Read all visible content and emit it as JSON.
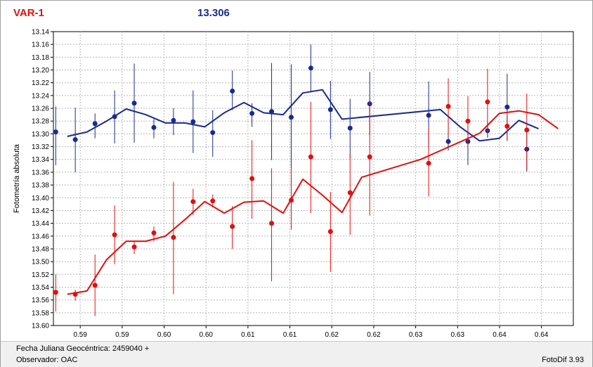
{
  "header": {
    "title": "VAR-1",
    "value": "13.306"
  },
  "footer": {
    "date_label": "Fecha Juliana Geocéntrica: 2459040 +",
    "observer_label": "Observador: OAC",
    "software_label": "FotoDif 3.93"
  },
  "chart_data": {
    "type": "scatter",
    "ylabel": "Fotometría absoluta",
    "xlabel": "",
    "y_inverted": true,
    "xlim": [
      0.5825,
      0.6445
    ],
    "ylim": [
      13.14,
      13.6
    ],
    "grid": true,
    "yticks": [
      "13.14",
      "13.16",
      "13.18",
      "13.20",
      "13.22",
      "13.24",
      "13.26",
      "13.28",
      "13.30",
      "13.32",
      "13.34",
      "13.36",
      "13.38",
      "13.40",
      "13.42",
      "13.44",
      "13.46",
      "13.48",
      "13.50",
      "13.52",
      "13.54",
      "13.56",
      "13.58",
      "13.60"
    ],
    "xticks": [
      {
        "x": 0.5857,
        "label": "0.59"
      },
      {
        "x": 0.5907,
        "label": "0.59"
      },
      {
        "x": 0.5957,
        "label": "0.60"
      },
      {
        "x": 0.6007,
        "label": "0.60"
      },
      {
        "x": 0.6057,
        "label": "0.61"
      },
      {
        "x": 0.6107,
        "label": "0.61"
      },
      {
        "x": 0.6157,
        "label": "0.62"
      },
      {
        "x": 0.6207,
        "label": "0.62"
      },
      {
        "x": 0.6257,
        "label": "0.63"
      },
      {
        "x": 0.6307,
        "label": "0.63"
      },
      {
        "x": 0.6357,
        "label": "0.64"
      },
      {
        "x": 0.6407,
        "label": "0.64"
      }
    ],
    "series": [
      {
        "color": "#1c2a8c",
        "points": [
          {
            "x": 0.58278,
            "y": 13.297,
            "lo": 13.257,
            "hi": 13.349
          },
          {
            "x": 0.58511,
            "y": 13.309,
            "lo": 13.259,
            "hi": 13.36
          },
          {
            "x": 0.58746,
            "y": 13.284,
            "lo": 13.268,
            "hi": 13.307
          },
          {
            "x": 0.5898,
            "y": 13.273,
            "lo": 13.232,
            "hi": 13.315
          },
          {
            "x": 0.59214,
            "y": 13.252,
            "lo": 13.19,
            "hi": 13.314
          },
          {
            "x": 0.59448,
            "y": 13.29,
            "lo": 13.277,
            "hi": 13.307
          },
          {
            "x": 0.59682,
            "y": 13.279,
            "lo": 13.26,
            "hi": 13.302
          },
          {
            "x": 0.59916,
            "y": 13.281,
            "lo": 13.232,
            "hi": 13.33
          },
          {
            "x": 0.6015,
            "y": 13.298,
            "lo": 13.263,
            "hi": 13.336
          },
          {
            "x": 0.60384,
            "y": 13.233,
            "lo": 13.201,
            "hi": 13.263
          },
          {
            "x": 0.60618,
            "y": 13.268,
            "lo": 13.252,
            "hi": 13.289
          },
          {
            "x": 0.60852,
            "y": 13.265,
            "lo": 13.189,
            "hi": 13.341
          },
          {
            "x": 0.61086,
            "y": 13.274,
            "lo": 13.191,
            "hi": 13.357
          },
          {
            "x": 0.6132,
            "y": 13.197,
            "lo": 13.16,
            "hi": 13.235
          },
          {
            "x": 0.61554,
            "y": 13.262,
            "lo": 13.217,
            "hi": 13.308
          },
          {
            "x": 0.61788,
            "y": 13.291,
            "lo": 13.245,
            "hi": 13.338
          },
          {
            "x": 0.62022,
            "y": 13.253,
            "lo": 13.203,
            "hi": 13.302
          },
          {
            "x": 0.62725,
            "y": 13.271,
            "lo": 13.218,
            "hi": 13.323
          },
          {
            "x": 0.62959,
            "y": 13.312,
            "lo": 13.283,
            "hi": 13.326
          },
          {
            "x": 0.63193,
            "y": 13.312,
            "lo": 13.28,
            "hi": 13.349
          },
          {
            "x": 0.63427,
            "y": 13.295,
            "lo": 13.281,
            "hi": 13.306
          },
          {
            "x": 0.63661,
            "y": 13.258,
            "lo": 13.206,
            "hi": 13.311
          },
          {
            "x": 0.63895,
            "y": 13.324,
            "lo": 13.289,
            "hi": 13.359
          }
        ],
        "line": [
          [
            0.58417,
            13.304
          ],
          [
            0.5865,
            13.297
          ],
          [
            0.58884,
            13.28
          ],
          [
            0.59118,
            13.261
          ],
          [
            0.59352,
            13.27
          ],
          [
            0.59586,
            13.283
          ],
          [
            0.5982,
            13.283
          ],
          [
            0.60054,
            13.289
          ],
          [
            0.60288,
            13.267
          ],
          [
            0.60522,
            13.251
          ],
          [
            0.60756,
            13.267
          ],
          [
            0.6099,
            13.27
          ],
          [
            0.61224,
            13.236
          ],
          [
            0.61458,
            13.231
          ],
          [
            0.61692,
            13.277
          ],
          [
            0.62865,
            13.262
          ],
          [
            0.63099,
            13.289
          ],
          [
            0.63333,
            13.311
          ],
          [
            0.63567,
            13.307
          ],
          [
            0.63801,
            13.279
          ],
          [
            0.64035,
            13.292
          ]
        ]
      },
      {
        "color": "#e01010",
        "points": [
          {
            "x": 0.58278,
            "y": 13.548,
            "lo": 13.52,
            "hi": 13.578
          },
          {
            "x": 0.58511,
            "y": 13.551,
            "lo": 13.544,
            "hi": 13.561
          },
          {
            "x": 0.58746,
            "y": 13.537,
            "lo": 13.489,
            "hi": 13.585
          },
          {
            "x": 0.5898,
            "y": 13.458,
            "lo": 13.412,
            "hi": 13.504
          },
          {
            "x": 0.59214,
            "y": 13.477,
            "lo": 13.467,
            "hi": 13.488
          },
          {
            "x": 0.59448,
            "y": 13.455,
            "lo": 13.445,
            "hi": 13.468
          },
          {
            "x": 0.59682,
            "y": 13.462,
            "lo": 13.375,
            "hi": 13.551
          },
          {
            "x": 0.59916,
            "y": 13.406,
            "lo": 13.386,
            "hi": 13.427
          },
          {
            "x": 0.6015,
            "y": 13.405,
            "lo": 13.395,
            "hi": 13.415
          },
          {
            "x": 0.60384,
            "y": 13.445,
            "lo": 13.413,
            "hi": 13.48
          },
          {
            "x": 0.60618,
            "y": 13.37,
            "lo": 13.31,
            "hi": 13.433
          },
          {
            "x": 0.60852,
            "y": 13.44,
            "lo": 13.354,
            "hi": 13.531
          },
          {
            "x": 0.61086,
            "y": 13.404,
            "lo": 13.353,
            "hi": 13.45
          },
          {
            "x": 0.6132,
            "y": 13.336,
            "lo": 13.25,
            "hi": 13.424
          },
          {
            "x": 0.61554,
            "y": 13.453,
            "lo": 13.391,
            "hi": 13.516
          },
          {
            "x": 0.61788,
            "y": 13.392,
            "lo": 13.331,
            "hi": 13.458
          },
          {
            "x": 0.62022,
            "y": 13.336,
            "lo": 13.246,
            "hi": 13.428
          },
          {
            "x": 0.62725,
            "y": 13.346,
            "lo": 13.291,
            "hi": 13.398
          },
          {
            "x": 0.62959,
            "y": 13.257,
            "lo": 13.213,
            "hi": 13.303
          },
          {
            "x": 0.63193,
            "y": 13.28,
            "lo": 13.241,
            "hi": 13.317
          },
          {
            "x": 0.63427,
            "y": 13.25,
            "lo": 13.198,
            "hi": 13.305
          },
          {
            "x": 0.63661,
            "y": 13.288,
            "lo": 13.274,
            "hi": 13.31
          },
          {
            "x": 0.63895,
            "y": 13.294,
            "lo": 13.237,
            "hi": 13.356
          }
        ],
        "line": [
          [
            0.58417,
            13.551
          ],
          [
            0.5865,
            13.546
          ],
          [
            0.58884,
            13.497
          ],
          [
            0.59118,
            13.468
          ],
          [
            0.59352,
            13.468
          ],
          [
            0.59586,
            13.46
          ],
          [
            0.5982,
            13.434
          ],
          [
            0.60054,
            13.406
          ],
          [
            0.60288,
            13.424
          ],
          [
            0.60522,
            13.407
          ],
          [
            0.60756,
            13.405
          ],
          [
            0.6099,
            13.424
          ],
          [
            0.61224,
            13.371
          ],
          [
            0.61458,
            13.396
          ],
          [
            0.61692,
            13.423
          ],
          [
            0.61926,
            13.368
          ],
          [
            0.6263,
            13.34
          ],
          [
            0.63333,
            13.299
          ],
          [
            0.63567,
            13.268
          ],
          [
            0.63801,
            13.264
          ],
          [
            0.64035,
            13.27
          ],
          [
            0.64269,
            13.292
          ]
        ]
      }
    ]
  }
}
